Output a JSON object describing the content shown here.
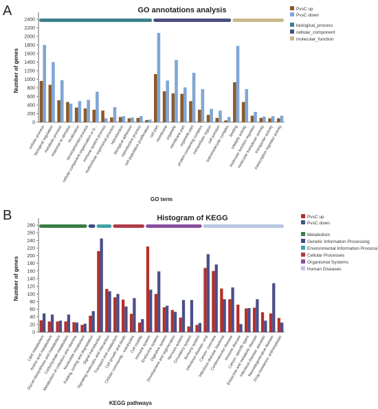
{
  "panels": {
    "a": "A",
    "b": "B"
  },
  "chart_data": [
    {
      "type": "bar",
      "title": "GO annotations analysis",
      "xlabel": "GO term",
      "ylabel": "Number of genes",
      "ylim": [
        0,
        2400
      ],
      "yticks": [
        0,
        200,
        400,
        600,
        800,
        1000,
        1200,
        1400,
        1600,
        1800,
        2000,
        2200,
        2400
      ],
      "legend_position": "top-right",
      "categories": [
        "cellular process",
        "biological regulation",
        "metabolic process",
        "response to stimulus",
        "localization",
        "developmental process",
        "cellular component organization or b...",
        "immune system process",
        "multicellular organismal process",
        "reproduction",
        "biological adhesion",
        "reproductive process",
        "cell population proliferation",
        "cell part",
        "membrane",
        "organelle",
        "membrane part",
        "organelle part",
        "protein-containing complex",
        "extracellular region",
        "cell junction",
        "supramolecular complex",
        "binding",
        "catalytic activity",
        "molecular function regulator",
        "molecular transducer activity",
        "transporter activity",
        "transcription regulator activity"
      ],
      "series": [
        {
          "name": "PvsC up",
          "color": "#8b5a2b",
          "values": [
            960,
            870,
            510,
            470,
            340,
            320,
            290,
            270,
            110,
            120,
            90,
            100,
            50,
            1120,
            720,
            670,
            660,
            490,
            290,
            170,
            100,
            40,
            930,
            470,
            150,
            100,
            90,
            90
          ]
        },
        {
          "name": "PvsC down",
          "color": "#7fa6d6",
          "values": [
            1800,
            1400,
            980,
            430,
            490,
            520,
            710,
            90,
            350,
            140,
            110,
            140,
            60,
            2080,
            970,
            1450,
            810,
            1150,
            770,
            310,
            270,
            120,
            1780,
            770,
            240,
            130,
            140,
            150
          ]
        }
      ],
      "groups": [
        {
          "name": "biological_process",
          "color": "#3d7f8c",
          "from": 0,
          "to": 12
        },
        {
          "name": "cellular_component",
          "color": "#4b4f82",
          "from": 13,
          "to": 21
        },
        {
          "name": "molecular_function",
          "color": "#c9b98a",
          "from": 22,
          "to": 27
        }
      ]
    },
    {
      "type": "bar",
      "title": "Histogram of KEGG",
      "xlabel": "KEGG pathways",
      "ylabel": "Number of genes",
      "ylim": [
        0,
        280
      ],
      "yticks": [
        0,
        20,
        40,
        60,
        80,
        100,
        120,
        140,
        160,
        180,
        200,
        220,
        240,
        260,
        280
      ],
      "legend_position": "top-right",
      "categories": [
        "Lipid metabolism",
        "Amino acid metabolism",
        "Glycan biosynthesis and metabolism",
        "Carbohydrate metabolism",
        "Metabolism of cofactors and vitamins",
        "Nucleotide metabolism",
        "Folding, sorting and degradation",
        "Signal transduction",
        "Signaling molecules and interaction",
        "Transport and catabolism",
        "Cell growth and death",
        "Cellular community - eukaryotes",
        "Cell motility",
        "Immune system",
        "Endocrine system",
        "Digestive system",
        "Development and regeneration",
        "Nervous system",
        "Circulatory system",
        "Sensory system",
        "Infectious disease: viral",
        "Cancer: overview",
        "Infectious disease: bacterial",
        "Cardiovascular disease",
        "Immune disease",
        "Cancer: specific types",
        "Endocrine and metabolic disease",
        "Infectious disease: parasitic",
        "Neurodegenerative disease",
        "Drug resistance: antineoplastic"
      ],
      "series": [
        {
          "name": "PvsC up",
          "color": "#b5302a",
          "values": [
            31,
            28,
            28,
            28,
            26,
            19,
            43,
            212,
            113,
            91,
            85,
            48,
            25,
            224,
            100,
            65,
            58,
            38,
            15,
            19,
            168,
            160,
            114,
            86,
            72,
            62,
            64,
            52,
            49,
            37
          ]
        },
        {
          "name": "PvsC down",
          "color": "#4a4f8a",
          "values": [
            49,
            46,
            30,
            46,
            25,
            22,
            55,
            245,
            107,
            100,
            67,
            89,
            34,
            111,
            159,
            69,
            53,
            84,
            84,
            24,
            204,
            177,
            86,
            117,
            21,
            63,
            86,
            30,
            128,
            25
          ]
        }
      ],
      "groups": [
        {
          "name": "Metabolism",
          "color": "#3a7d44",
          "from": 0,
          "to": 5
        },
        {
          "name": "Genetic Information Processing",
          "color": "#3e4a86",
          "from": 6,
          "to": 6
        },
        {
          "name": "Environmental Information Processing",
          "color": "#3fa3a6",
          "from": 7,
          "to": 8
        },
        {
          "name": "Cellular Processes",
          "color": "#b03a48",
          "from": 9,
          "to": 12
        },
        {
          "name": "Organismal Systems",
          "color": "#8a4f9e",
          "from": 13,
          "to": 19
        },
        {
          "name": "Human Diseases",
          "color": "#b7c7e2",
          "from": 20,
          "to": 29
        }
      ]
    }
  ]
}
